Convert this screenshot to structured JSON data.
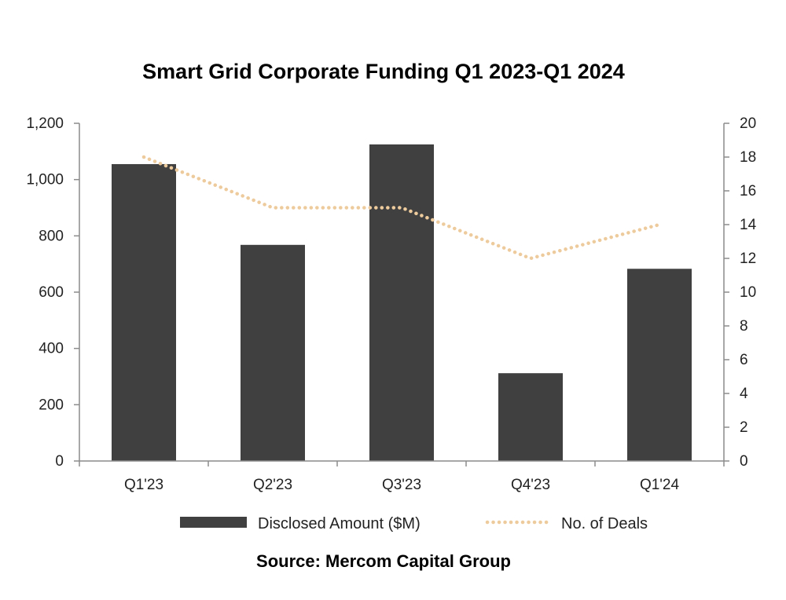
{
  "chart_data": {
    "type": "bar",
    "title": "Smart Grid Corporate Funding Q1 2023-Q1 2024",
    "categories": [
      "Q1'23",
      "Q2'23",
      "Q3'23",
      "Q4'23",
      "Q1'24"
    ],
    "series": [
      {
        "name": "Disclosed Amount ($M)",
        "type": "bar",
        "axis": "left",
        "color": "#404040",
        "values": [
          1055,
          768,
          1125,
          312,
          683
        ]
      },
      {
        "name": "No. of Deals",
        "type": "line",
        "style": "dotted",
        "axis": "right",
        "color": "#eecb9c",
        "values": [
          18,
          15,
          15,
          12,
          14
        ]
      }
    ],
    "y_left": {
      "ylim": [
        0,
        1200
      ],
      "ticks": [
        0,
        200,
        400,
        600,
        800,
        1000,
        1200
      ],
      "tick_labels": [
        "0",
        "200",
        "400",
        "600",
        "800",
        "1,000",
        "1,200"
      ]
    },
    "y_right": {
      "ylim": [
        0,
        20
      ],
      "ticks": [
        0,
        2,
        4,
        6,
        8,
        10,
        12,
        14,
        16,
        18,
        20
      ],
      "tick_labels": [
        "0",
        "2",
        "4",
        "6",
        "8",
        "10",
        "12",
        "14",
        "16",
        "18",
        "20"
      ]
    },
    "grid": false,
    "legend_position": "bottom",
    "source": "Source: Mercom Capital Group"
  }
}
